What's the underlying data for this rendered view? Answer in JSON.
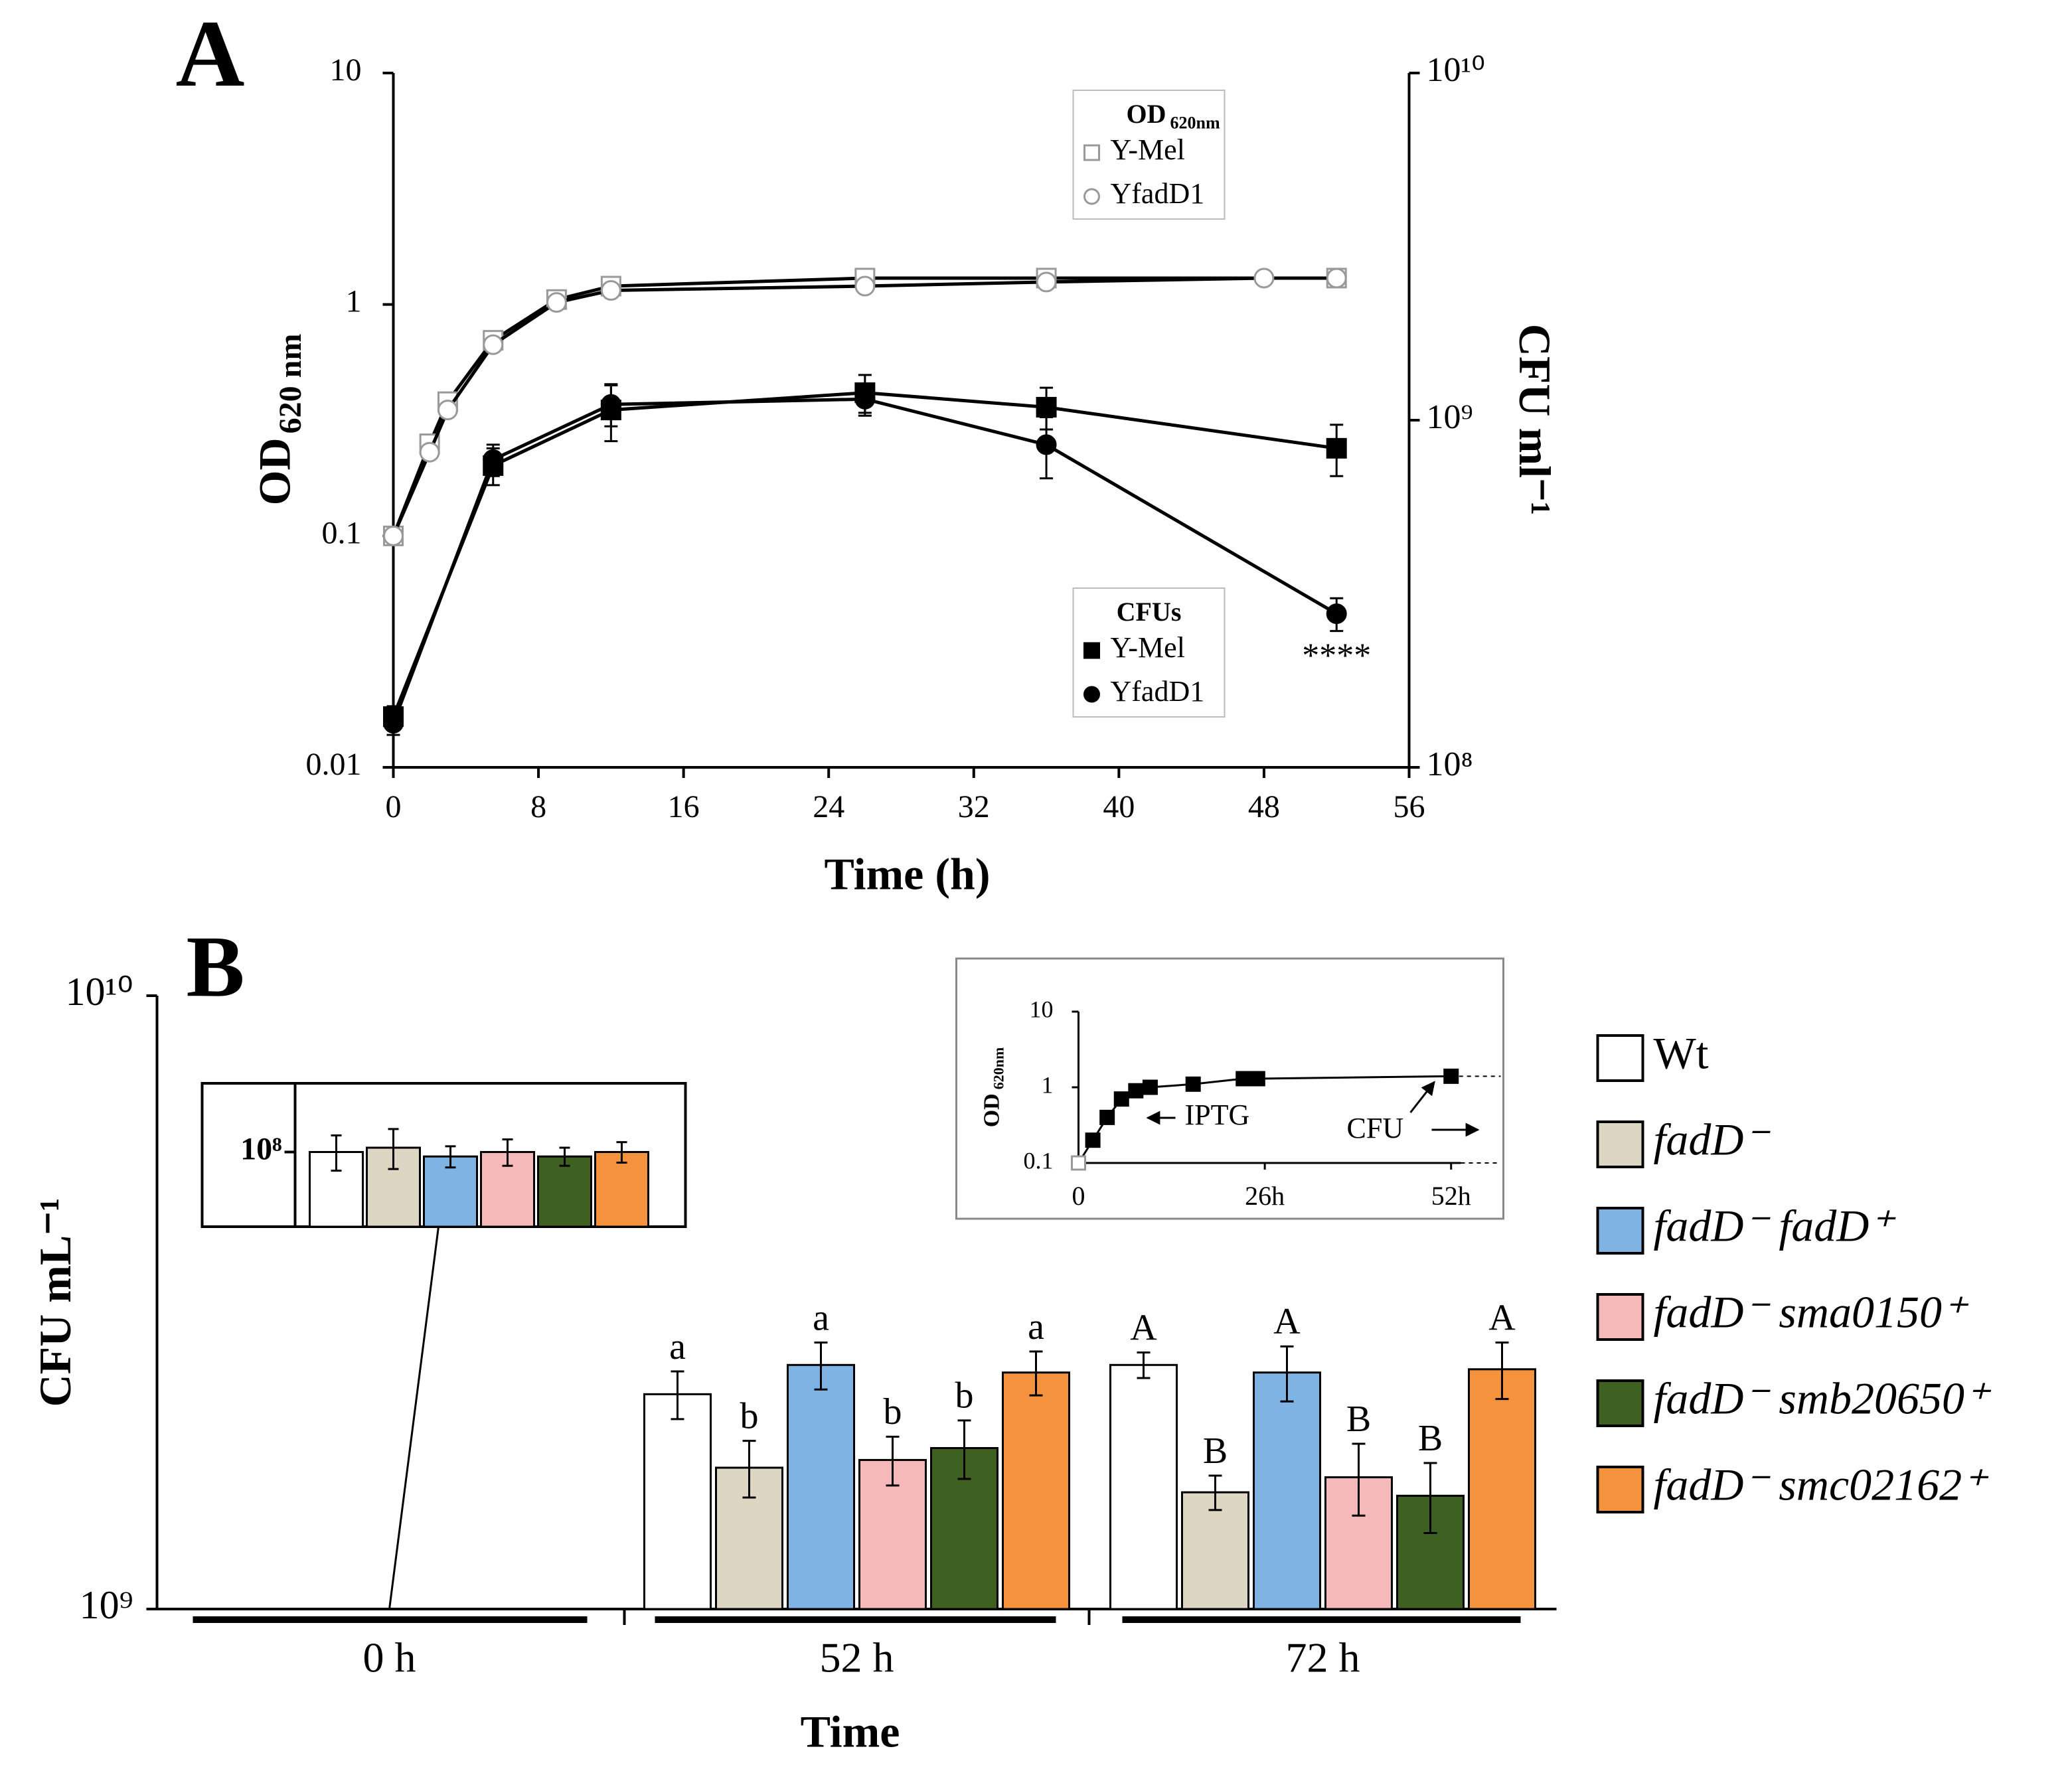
{
  "chart_data": [
    {
      "type": "line",
      "panel": "A",
      "xlabel": "Time (h)",
      "ylabel": [
        "OD",
        "620 nm"
      ],
      "y2label": "CFU ml⁻¹",
      "log": true,
      "xlim": [
        0,
        56
      ],
      "xticks": [
        0,
        8,
        16,
        24,
        32,
        40,
        48,
        56
      ],
      "ylim": [
        0.01,
        10
      ],
      "yticks": [
        0.01,
        0.1,
        1,
        10
      ],
      "y2lim": [
        100000000,
        10000000000
      ],
      "y2ticks": [
        {
          "value": 100000000,
          "label": "10⁸"
        },
        {
          "value": 1000000000,
          "label": "10⁹"
        },
        {
          "value": 10000000000,
          "label": "10¹⁰"
        }
      ],
      "legends": [
        {
          "title": [
            "OD",
            "620nm"
          ]
        },
        {
          "title": "CFUs"
        }
      ],
      "annotation": "****",
      "series": [
        {
          "name": "Y-Mel",
          "color": "#000000",
          "marker": "square",
          "filled": false,
          "x": [
            0,
            2,
            3,
            5.5,
            9,
            12,
            26,
            36,
            52
          ],
          "values": [
            0.1,
            0.25,
            0.38,
            0.7,
            1.05,
            1.2,
            1.3,
            1.3,
            1.3
          ]
        },
        {
          "name": "YfadD1",
          "color": "#000000",
          "marker": "circle",
          "filled": false,
          "x": [
            0,
            2,
            3,
            5.5,
            9,
            12,
            26,
            36,
            48,
            52
          ],
          "values": [
            0.1,
            0.23,
            0.35,
            0.67,
            1.02,
            1.15,
            1.2,
            1.25,
            1.3,
            1.3
          ]
        },
        {
          "name": "Y-Mel",
          "color": "#000000",
          "marker": "square",
          "filled": true,
          "axis": "y2",
          "x": [
            0,
            5.5,
            12,
            26,
            36,
            52
          ],
          "values": [
            140000000,
            740000000,
            1070000000,
            1200000000,
            1090000000,
            830000000
          ],
          "errors": [
            10000000,
            90000000,
            200000000,
            150000000,
            150000000,
            140000000
          ]
        },
        {
          "name": "YfadD1",
          "color": "#000000",
          "marker": "circle",
          "filled": true,
          "axis": "y2",
          "x": [
            0,
            5.5,
            12,
            26,
            36,
            52
          ],
          "values": [
            134000000,
            770000000,
            1110000000,
            1150000000,
            850000000,
            277000000
          ],
          "errors": [
            10000000,
            80000000,
            150000000,
            120000000,
            170000000,
            30000000
          ]
        }
      ]
    },
    {
      "type": "bar",
      "panel": "B",
      "xlabel": "Time",
      "ylabel": "CFU mL⁻¹",
      "log": true,
      "categories": [
        "0 h",
        "52 h",
        "72 h"
      ],
      "ylim": [
        1000000000,
        10000000000
      ],
      "yticks": [
        {
          "value": 1000000000,
          "label": "10⁹"
        },
        {
          "value": 10000000000,
          "label": "10¹⁰"
        }
      ],
      "series": [
        {
          "name": "Wt",
          "color": "#ffffff",
          "italic": false,
          "values": [
            null,
            2240000000,
            2500000000
          ],
          "errors": [
            null,
            200000000,
            120000000
          ],
          "letters": [
            null,
            "a",
            "A"
          ]
        },
        {
          "name": "fadD⁻",
          "color": "#ddd6c3",
          "italic": true,
          "values": [
            null,
            1700000000,
            1550000000
          ],
          "errors": [
            null,
            180000000,
            100000000
          ],
          "letters": [
            null,
            "b",
            "B"
          ]
        },
        {
          "name": "fadD⁻ fadD⁺",
          "color": "#7fb3e3",
          "italic": true,
          "values": [
            null,
            2500000000,
            2430000000
          ],
          "errors": [
            null,
            220000000,
            250000000
          ],
          "letters": [
            null,
            "a",
            "A"
          ]
        },
        {
          "name": "fadD⁻ sma0150⁺",
          "color": "#f4b9b8",
          "italic": true,
          "values": [
            null,
            1750000000,
            1640000000
          ],
          "errors": [
            null,
            160000000,
            220000000
          ],
          "letters": [
            null,
            "b",
            "B"
          ]
        },
        {
          "name": "fadD⁻ smb20650⁺",
          "color": "#3e6121",
          "italic": true,
          "values": [
            null,
            1830000000,
            1530000000
          ],
          "errors": [
            null,
            200000000,
            200000000
          ],
          "letters": [
            null,
            "b",
            "B"
          ]
        },
        {
          "name": "fadD⁻ smc02162⁺",
          "color": "#f5923e",
          "italic": true,
          "values": [
            null,
            2430000000,
            2460000000
          ],
          "errors": [
            null,
            200000000,
            260000000
          ],
          "letters": [
            null,
            "a",
            "A"
          ]
        }
      ]
    },
    {
      "type": "bar",
      "log": true,
      "ylim": [
        60000000,
        160000000
      ],
      "yticks": [
        {
          "value": 100000000,
          "label": "10⁸"
        }
      ],
      "values": [
        100000000,
        103000000,
        97000000,
        100000000,
        97000000,
        100000000
      ],
      "errors": [
        12000000,
        14000000,
        7000000,
        9000000,
        6000000,
        7000000
      ]
    },
    {
      "type": "line",
      "log": true,
      "ylabel": [
        "OD",
        "620nm"
      ],
      "xlim": [
        0,
        58
      ],
      "xticks": [
        0,
        {
          "value": 26,
          "label": "26h"
        },
        {
          "value": 52,
          "label": "52h"
        }
      ],
      "ylim": [
        0.1,
        10
      ],
      "yticks": [
        0.1,
        1,
        10
      ],
      "annotations": [
        "IPTG",
        "CFU"
      ],
      "x": [
        0,
        2,
        4,
        6,
        8,
        10,
        16,
        23,
        24,
        25,
        52
      ],
      "values": [
        0.1,
        0.2,
        0.4,
        0.7,
        0.9,
        1.0,
        1.1,
        1.3,
        1.3,
        1.3,
        1.4
      ]
    }
  ]
}
